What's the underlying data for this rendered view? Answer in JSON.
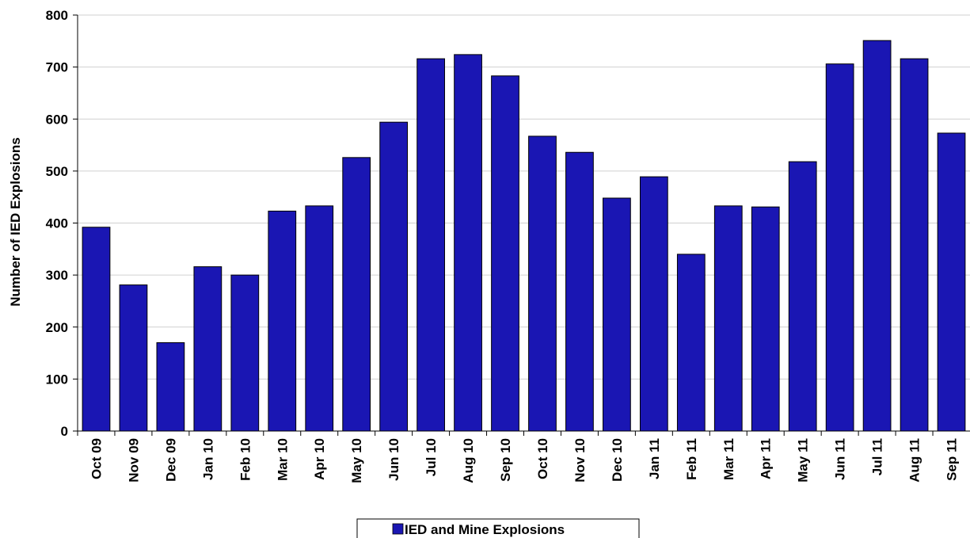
{
  "chart_data": {
    "type": "bar",
    "categories": [
      "Oct 09",
      "Nov 09",
      "Dec 09",
      "Jan 10",
      "Feb 10",
      "Mar 10",
      "Apr 10",
      "May 10",
      "Jun 10",
      "Jul 10",
      "Aug 10",
      "Sep 10",
      "Oct 10",
      "Nov 10",
      "Dec 10",
      "Jan 11",
      "Feb 11",
      "Mar 11",
      "Apr 11",
      "May 11",
      "Jun 11",
      "Jul 11",
      "Aug 11",
      "Sep 11"
    ],
    "series": [
      {
        "name": "IED and Mine Explosions",
        "color": "#1a16b3",
        "values": [
          392,
          281,
          170,
          316,
          300,
          423,
          433,
          526,
          594,
          716,
          724,
          683,
          567,
          536,
          448,
          489,
          340,
          433,
          431,
          518,
          706,
          751,
          716,
          573
        ]
      }
    ],
    "title": "",
    "xlabel": "",
    "ylabel": "Number of IED Explosions",
    "ylim": [
      0,
      800
    ],
    "yticks": [
      0,
      100,
      200,
      300,
      400,
      500,
      600,
      700,
      800
    ],
    "grid": true,
    "legend_position": "bottom"
  }
}
